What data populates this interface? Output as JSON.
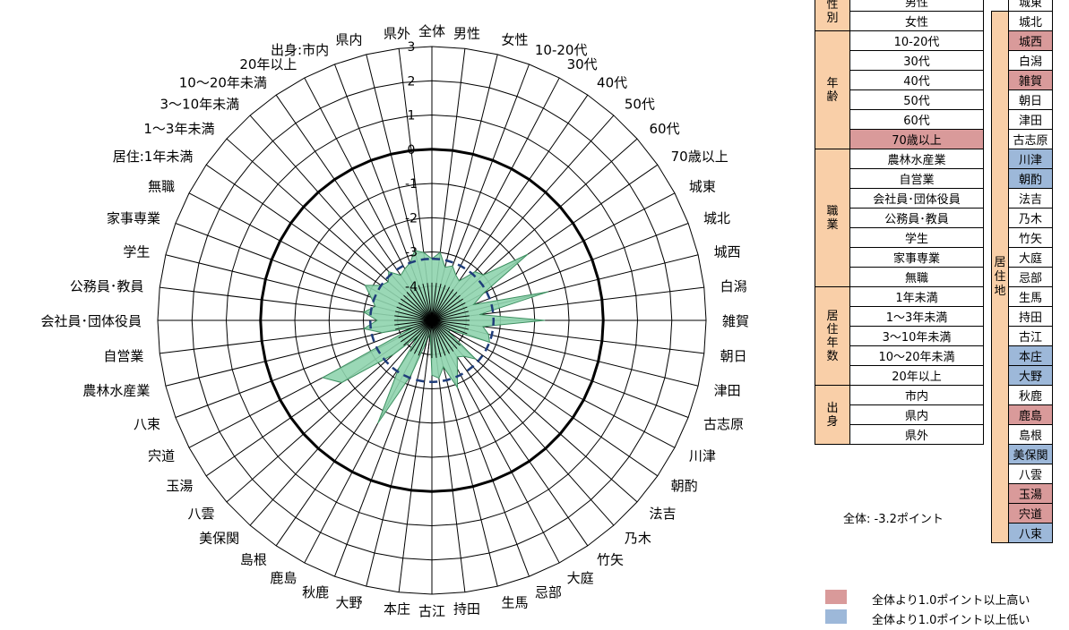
{
  "chart_data": {
    "type": "radar",
    "title": "",
    "axes": [
      "全体",
      "男性",
      "女性",
      "10-20代",
      "30代",
      "40代",
      "50代",
      "60代",
      "70歳以上",
      "城東",
      "城北",
      "城西",
      "白潟",
      "雑賀",
      "朝日",
      "津田",
      "古志原",
      "川津",
      "朝酌",
      "法吉",
      "乃木",
      "竹矢",
      "大庭",
      "忌部",
      "生馬",
      "持田",
      "古江",
      "本庄",
      "大野",
      "秋鹿",
      "鹿島",
      "島根",
      "美保関",
      "八雲",
      "玉湯",
      "宍道",
      "八束",
      "農林水産業",
      "自営業",
      "会社員･団体役員",
      "公務員･教員",
      "学生",
      "家事専業",
      "無職",
      "居住:1年未満",
      "1～3年未満",
      "3～10年未満",
      "10～20年未満",
      "20年以上",
      "出身:市内",
      "県内",
      "県外"
    ],
    "radial_ticks": [
      "3",
      "2",
      "1",
      "0",
      "-1",
      "-2",
      "-3",
      "-4"
    ],
    "rlim": [
      -5,
      3
    ],
    "reference_ring": 0,
    "series": [
      {
        "values": [
          -3.2,
          -3.0,
          -3.4,
          -3.3,
          -3.5,
          -3.6,
          -3.1,
          -3.0,
          -1.6,
          -3.3,
          -3.7,
          -1.5,
          -3.6,
          -1.7,
          -3.5,
          -3.3,
          -3.2,
          -4.4,
          -4.4,
          -3.3,
          -3.6,
          -3.7,
          -3.4,
          -2.9,
          -3.6,
          -3.3,
          -3.4,
          -4.6,
          -4.4,
          -3.3,
          -1.6,
          -3.3,
          -4.4,
          -3.5,
          -1.8,
          -1.4,
          -4.4,
          -3.5,
          -3.0,
          -3.4,
          -3.0,
          -3.3,
          -3.1,
          -2.8,
          -3.2,
          -3.3,
          -3.1,
          -3.4,
          -3.3,
          -3.2,
          -2.9,
          -3.0
        ]
      },
      {
        "values": [
          -3.2,
          -3.2,
          -3.2,
          -3.2,
          -3.2,
          -3.2,
          -3.2,
          -3.2,
          -3.2,
          -3.2,
          -3.2,
          -3.2,
          -3.2,
          -3.2,
          -3.2,
          -3.2,
          -3.2,
          -3.2,
          -3.2,
          -3.2,
          -3.2,
          -3.2,
          -3.2,
          -3.2,
          -3.2,
          -3.2,
          -3.2,
          -3.2,
          -3.2,
          -3.2,
          -3.2,
          -3.2,
          -3.2,
          -3.2,
          -3.2,
          -3.2,
          -3.2,
          -3.2,
          -3.2,
          -3.2,
          -3.2,
          -3.2,
          -3.2,
          -3.2,
          -3.2,
          -3.2,
          -3.2,
          -3.2,
          -3.2,
          -3.2,
          -3.2,
          -3.2
        ]
      }
    ],
    "colors": {
      "fill": "#8fd4ae",
      "fill_stroke": "#3e8f61",
      "mean_line": "#1f3d7a",
      "high": "#d99a9a",
      "low": "#9db8d9",
      "category": "#f9cfa8"
    }
  },
  "legend_table": {
    "groups": [
      {
        "label": "性別",
        "items": [
          {
            "label": "男性"
          },
          {
            "label": "女性"
          }
        ]
      },
      {
        "label": "年齢",
        "items": [
          {
            "label": "10-20代"
          },
          {
            "label": "30代"
          },
          {
            "label": "40代"
          },
          {
            "label": "50代"
          },
          {
            "label": "60代"
          },
          {
            "label": "70歳以上",
            "status": "hi"
          }
        ]
      },
      {
        "label": "職業",
        "items": [
          {
            "label": "農林水産業"
          },
          {
            "label": "自営業"
          },
          {
            "label": "会社員･団体役員"
          },
          {
            "label": "公務員･教員"
          },
          {
            "label": "学生"
          },
          {
            "label": "家事専業"
          },
          {
            "label": "無職"
          }
        ]
      },
      {
        "label": "居住年数",
        "items": [
          {
            "label": "1年未満"
          },
          {
            "label": "1～3年未満"
          },
          {
            "label": "3～10年未満"
          },
          {
            "label": "10～20年未満"
          },
          {
            "label": "20年以上"
          }
        ]
      },
      {
        "label": "出身",
        "items": [
          {
            "label": "市内"
          },
          {
            "label": "県内"
          },
          {
            "label": "県外"
          }
        ]
      }
    ],
    "region_label": "居住地",
    "cities": [
      {
        "label": "城東"
      },
      {
        "label": "城北"
      },
      {
        "label": "城西",
        "status": "hi"
      },
      {
        "label": "白潟"
      },
      {
        "label": "雑賀",
        "status": "hi"
      },
      {
        "label": "朝日"
      },
      {
        "label": "津田"
      },
      {
        "label": "古志原"
      },
      {
        "label": "川津",
        "status": "lo"
      },
      {
        "label": "朝酌",
        "status": "lo"
      },
      {
        "label": "法吉"
      },
      {
        "label": "乃木"
      },
      {
        "label": "竹矢"
      },
      {
        "label": "大庭"
      },
      {
        "label": "忌部"
      },
      {
        "label": "生馬"
      },
      {
        "label": "持田"
      },
      {
        "label": "古江"
      },
      {
        "label": "本庄",
        "status": "lo"
      },
      {
        "label": "大野",
        "status": "lo"
      },
      {
        "label": "秋鹿"
      },
      {
        "label": "鹿島",
        "status": "hi"
      },
      {
        "label": "島根"
      },
      {
        "label": "美保関",
        "status": "lo"
      },
      {
        "label": "八雲"
      },
      {
        "label": "玉湯",
        "status": "hi"
      },
      {
        "label": "宍道",
        "status": "hi"
      },
      {
        "label": "八束",
        "status": "lo"
      }
    ]
  },
  "overall_note": "全体:  -3.2ポイント",
  "key": {
    "high_label": "全体より1.0ポイント以上高い",
    "low_label": "全体より1.0ポイント以上低い"
  }
}
